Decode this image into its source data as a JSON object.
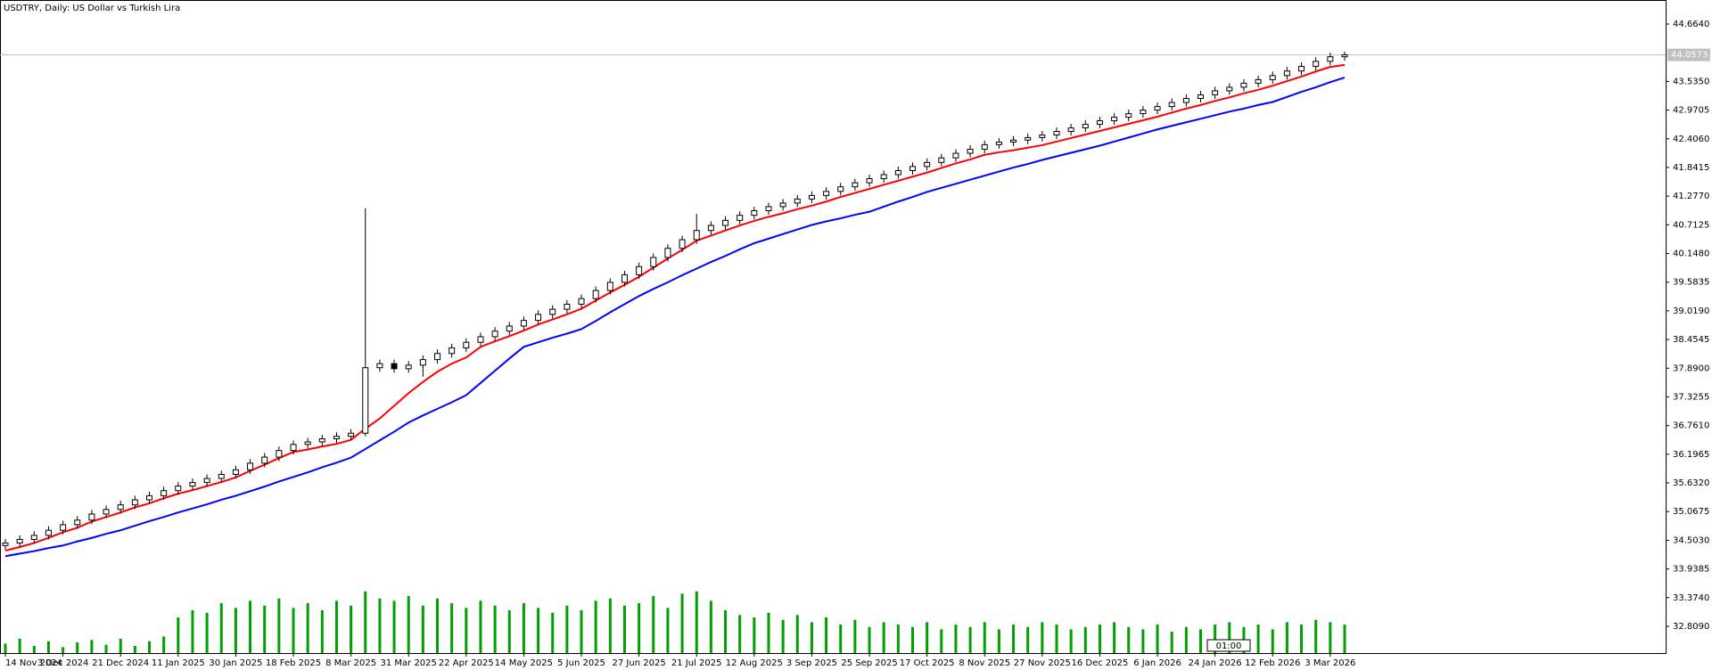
{
  "chart_data": {
    "type": "candlestick",
    "title": "USDTRY, Daily:  US Dollar vs Turkish Lira",
    "annotation": "01:00",
    "categories": [
      "14 Nov 2024",
      null,
      null,
      null,
      "3 Dec 2024",
      null,
      null,
      null,
      "21 Dec 2024",
      null,
      null,
      null,
      "11 Jan 2025",
      null,
      null,
      null,
      "30 Jan 2025",
      null,
      null,
      null,
      "18 Feb 2025",
      null,
      null,
      null,
      "8 Mar 2025",
      null,
      null,
      null,
      "31 Mar 2025",
      null,
      null,
      null,
      "22 Apr 2025",
      null,
      null,
      null,
      "14 May 2025",
      null,
      null,
      null,
      "5 Jun 2025",
      null,
      null,
      null,
      "27 Jun 2025",
      null,
      null,
      null,
      "21 Jul 2025",
      null,
      null,
      null,
      "12 Aug 2025",
      null,
      null,
      null,
      "3 Sep 2025",
      null,
      null,
      null,
      "25 Sep 2025",
      null,
      null,
      null,
      "17 Oct 2025",
      null,
      null,
      null,
      "8 Nov 2025",
      null,
      null,
      null,
      "27 Nov 2025",
      null,
      null,
      null,
      "16 Dec 2025",
      null,
      null,
      null,
      "6 Jan 2026",
      null,
      null,
      null,
      "24 Jan 2026",
      null,
      null,
      null,
      "12 Feb 2026",
      null,
      null,
      null,
      "3 Mar 2026",
      null
    ],
    "open": [
      34.4,
      34.45,
      34.52,
      34.6,
      34.7,
      34.81,
      34.9,
      35.02,
      35.11,
      35.2,
      35.3,
      35.38,
      35.48,
      35.57,
      35.64,
      35.72,
      35.8,
      35.89,
      36.02,
      36.14,
      36.27,
      36.39,
      36.44,
      36.5,
      36.55,
      36.61,
      37.9,
      37.98,
      37.88,
      37.95,
      38.06,
      38.18,
      38.29,
      38.4,
      38.51,
      38.62,
      38.72,
      38.83,
      38.95,
      39.05,
      39.15,
      39.26,
      39.42,
      39.58,
      39.73,
      39.89,
      40.07,
      40.25,
      40.42,
      40.6,
      40.7,
      40.8,
      40.9,
      40.99,
      41.07,
      41.14,
      41.22,
      41.29,
      41.37,
      41.46,
      41.54,
      41.62,
      41.7,
      41.78,
      41.86,
      41.94,
      42.03,
      42.12,
      42.2,
      42.29,
      42.34,
      42.38,
      42.43,
      42.48,
      42.55,
      42.62,
      42.69,
      42.76,
      42.83,
      42.9,
      42.97,
      43.04,
      43.12,
      43.2,
      43.27,
      43.35,
      43.42,
      43.5,
      43.57,
      43.65,
      43.74,
      43.83,
      43.93,
      44.02
    ],
    "high": [
      34.53,
      34.6,
      34.68,
      34.78,
      34.89,
      34.98,
      35.1,
      35.19,
      35.28,
      35.38,
      35.46,
      35.56,
      35.65,
      35.72,
      35.8,
      35.88,
      35.97,
      36.1,
      36.22,
      36.35,
      36.47,
      36.52,
      36.58,
      36.63,
      36.69,
      41.04,
      38.06,
      38.06,
      38.03,
      38.14,
      38.26,
      38.37,
      38.48,
      38.59,
      38.7,
      38.8,
      38.91,
      39.03,
      39.13,
      39.23,
      39.34,
      39.5,
      39.66,
      39.81,
      39.97,
      40.15,
      40.33,
      40.5,
      40.93,
      40.78,
      40.88,
      40.98,
      41.07,
      41.15,
      41.22,
      41.3,
      41.37,
      41.45,
      41.54,
      41.62,
      41.7,
      41.78,
      41.86,
      41.94,
      42.02,
      42.11,
      42.2,
      42.28,
      42.37,
      42.42,
      42.46,
      42.51,
      42.56,
      42.63,
      42.7,
      42.77,
      42.84,
      42.91,
      42.98,
      43.05,
      43.12,
      43.2,
      43.28,
      43.35,
      43.43,
      43.5,
      43.58,
      43.65,
      43.73,
      43.82,
      43.91,
      44.01,
      44.1,
      44.12
    ],
    "low": [
      34.32,
      34.37,
      34.44,
      34.52,
      34.62,
      34.73,
      34.82,
      34.94,
      35.03,
      35.12,
      35.22,
      35.3,
      35.4,
      35.49,
      35.56,
      35.64,
      35.72,
      35.81,
      35.94,
      36.06,
      36.19,
      36.31,
      36.36,
      36.42,
      36.47,
      36.55,
      37.82,
      37.8,
      37.8,
      37.72,
      37.98,
      38.1,
      38.21,
      38.32,
      38.43,
      38.54,
      38.64,
      38.75,
      38.87,
      38.97,
      39.07,
      39.18,
      39.34,
      39.5,
      39.65,
      39.81,
      39.99,
      40.17,
      40.34,
      40.52,
      40.62,
      40.72,
      40.82,
      40.91,
      40.99,
      41.06,
      41.14,
      41.21,
      41.29,
      41.38,
      41.46,
      41.54,
      41.62,
      41.7,
      41.78,
      41.86,
      41.95,
      42.04,
      42.12,
      42.21,
      42.26,
      42.3,
      42.35,
      42.4,
      42.47,
      42.54,
      42.61,
      42.68,
      42.75,
      42.82,
      42.89,
      42.96,
      43.04,
      43.12,
      43.19,
      43.27,
      43.34,
      43.42,
      43.49,
      43.57,
      43.66,
      43.75,
      43.85,
      43.94
    ],
    "close": [
      34.45,
      34.52,
      34.6,
      34.7,
      34.81,
      34.9,
      35.02,
      35.11,
      35.2,
      35.3,
      35.38,
      35.48,
      35.57,
      35.64,
      35.72,
      35.8,
      35.89,
      36.02,
      36.14,
      36.27,
      36.39,
      36.44,
      36.5,
      36.55,
      36.61,
      37.9,
      37.98,
      37.88,
      37.95,
      38.06,
      38.18,
      38.29,
      38.4,
      38.51,
      38.62,
      38.72,
      38.83,
      38.95,
      39.05,
      39.15,
      39.26,
      39.42,
      39.58,
      39.73,
      39.89,
      40.07,
      40.25,
      40.42,
      40.6,
      40.7,
      40.8,
      40.9,
      40.99,
      41.07,
      41.14,
      41.22,
      41.29,
      41.37,
      41.46,
      41.54,
      41.62,
      41.7,
      41.78,
      41.86,
      41.94,
      42.03,
      42.12,
      42.2,
      42.29,
      42.34,
      42.38,
      42.43,
      42.48,
      42.55,
      42.62,
      42.69,
      42.76,
      42.83,
      42.9,
      42.97,
      43.04,
      43.12,
      43.2,
      43.27,
      43.35,
      43.42,
      43.5,
      43.57,
      43.65,
      43.74,
      43.83,
      43.93,
      44.02,
      44.0573
    ],
    "series": [
      {
        "color": "#ff0000",
        "values": [
          34.3,
          34.37,
          34.45,
          34.55,
          34.66,
          34.75,
          34.87,
          34.96,
          35.05,
          35.15,
          35.23,
          35.33,
          35.42,
          35.49,
          35.57,
          35.65,
          35.74,
          35.87,
          35.99,
          36.12,
          36.24,
          36.29,
          36.35,
          36.4,
          36.48,
          36.7,
          36.9,
          37.15,
          37.4,
          37.62,
          37.82,
          37.98,
          38.1,
          38.31,
          38.42,
          38.52,
          38.63,
          38.75,
          38.85,
          38.95,
          39.06,
          39.22,
          39.38,
          39.53,
          39.69,
          39.87,
          40.05,
          40.22,
          40.4,
          40.5,
          40.6,
          40.7,
          40.79,
          40.87,
          40.94,
          41.02,
          41.09,
          41.17,
          41.26,
          41.34,
          41.42,
          41.5,
          41.58,
          41.66,
          41.74,
          41.83,
          41.92,
          42.0,
          42.09,
          42.14,
          42.18,
          42.23,
          42.28,
          42.35,
          42.42,
          42.49,
          42.56,
          42.63,
          42.7,
          42.77,
          42.84,
          42.92,
          43.0,
          43.07,
          43.15,
          43.22,
          43.3,
          43.37,
          43.45,
          43.54,
          43.63,
          43.73,
          43.82,
          43.86
        ]
      },
      {
        "color": "#0000ff",
        "values": [
          34.19,
          34.24,
          34.29,
          34.35,
          34.4,
          34.48,
          34.55,
          34.63,
          34.7,
          34.79,
          34.88,
          34.96,
          35.05,
          35.13,
          35.21,
          35.3,
          35.38,
          35.47,
          35.56,
          35.66,
          35.75,
          35.84,
          35.94,
          36.03,
          36.13,
          36.3,
          36.47,
          36.64,
          36.82,
          36.96,
          37.09,
          37.22,
          37.36,
          37.6,
          37.84,
          38.08,
          38.31,
          38.4,
          38.49,
          38.57,
          38.66,
          38.82,
          38.99,
          39.15,
          39.31,
          39.45,
          39.58,
          39.72,
          39.85,
          39.98,
          40.1,
          40.23,
          40.35,
          40.44,
          40.53,
          40.62,
          40.71,
          40.78,
          40.84,
          40.91,
          40.97,
          41.07,
          41.17,
          41.26,
          41.36,
          41.44,
          41.52,
          41.6,
          41.68,
          41.76,
          41.84,
          41.91,
          41.99,
          42.06,
          42.13,
          42.2,
          42.27,
          42.35,
          42.43,
          42.51,
          42.59,
          42.66,
          42.73,
          42.8,
          42.87,
          42.94,
          43.0,
          43.07,
          43.13,
          43.23,
          43.33,
          43.42,
          43.52,
          43.61
        ]
      }
    ],
    "volume": {
      "color": "#00a000",
      "ylim": [
        0,
        60
      ],
      "values": [
        8,
        12,
        6,
        10,
        5,
        9,
        11,
        7,
        12,
        6,
        10,
        14,
        30,
        36,
        34,
        42,
        38,
        44,
        40,
        46,
        38,
        42,
        36,
        44,
        40,
        52,
        46,
        44,
        48,
        40,
        46,
        42,
        38,
        44,
        40,
        36,
        42,
        38,
        34,
        40,
        36,
        44,
        46,
        40,
        42,
        48,
        38,
        50,
        52,
        44,
        36,
        32,
        30,
        34,
        28,
        32,
        26,
        30,
        24,
        28,
        22,
        26,
        24,
        22,
        26,
        20,
        24,
        22,
        26,
        20,
        24,
        22,
        26,
        24,
        20,
        22,
        24,
        26,
        22,
        20,
        24,
        18,
        22,
        20,
        24,
        26,
        22,
        24,
        20,
        26,
        24,
        28,
        26,
        24
      ]
    },
    "ylim": [
      32.283,
      45.1375
    ],
    "yticks": [
      {
        "value": 44.664,
        "label": "44.6640"
      },
      {
        "value": 43.535,
        "label": "43.5350"
      },
      {
        "value": 42.9705,
        "label": "42.9705"
      },
      {
        "value": 42.406,
        "label": "42.4060"
      },
      {
        "value": 41.8415,
        "label": "41.8415"
      },
      {
        "value": 41.277,
        "label": "41.2770"
      },
      {
        "value": 40.7125,
        "label": "40.7125"
      },
      {
        "value": 40.148,
        "label": "40.1480"
      },
      {
        "value": 39.5835,
        "label": "39.5835"
      },
      {
        "value": 39.019,
        "label": "39.0190"
      },
      {
        "value": 38.4545,
        "label": "38.4545"
      },
      {
        "value": 37.89,
        "label": "37.8900"
      },
      {
        "value": 37.3255,
        "label": "37.3255"
      },
      {
        "value": 36.761,
        "label": "36.7610"
      },
      {
        "value": 36.1965,
        "label": "36.1965"
      },
      {
        "value": 35.632,
        "label": "35.6320"
      },
      {
        "value": 35.0675,
        "label": "35.0675"
      },
      {
        "value": 34.503,
        "label": "34.5030"
      },
      {
        "value": 33.9385,
        "label": "33.9385"
      },
      {
        "value": 33.374,
        "label": "33.3740"
      },
      {
        "value": 32.809,
        "label": "32.8090"
      }
    ],
    "grid": false,
    "up_color": "#ffffff",
    "down_color": "#000000",
    "bid_line_color": "#c0c0c0"
  }
}
